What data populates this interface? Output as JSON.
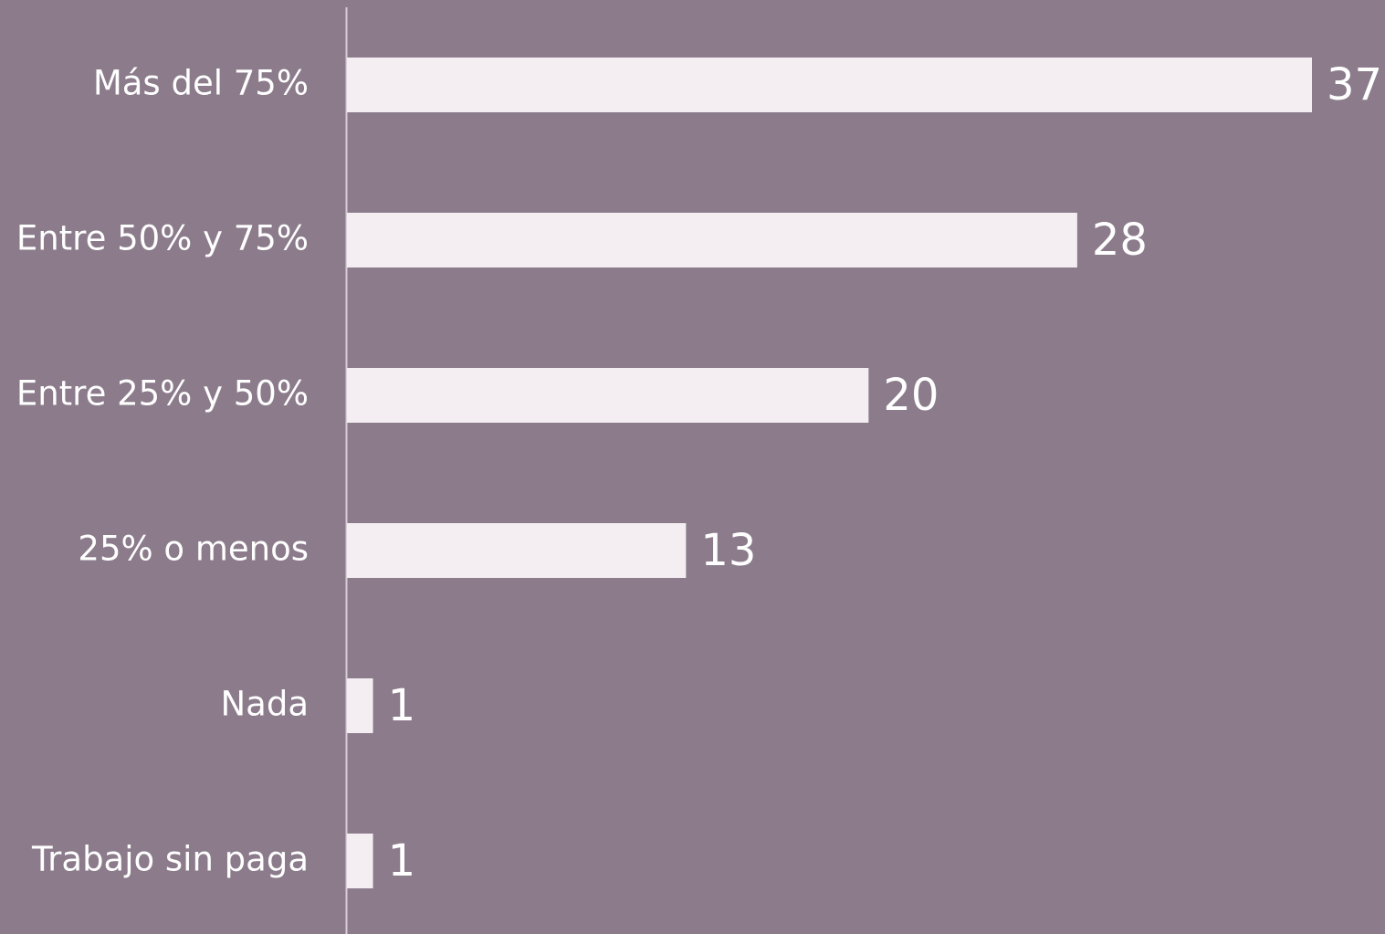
{
  "chart_data": {
    "type": "bar",
    "orientation": "horizontal",
    "categories": [
      "Más del 75%",
      "Entre 50% y 75%",
      "Entre 25% y 50%",
      "25% o menos",
      "Nada",
      "Trabajo sin paga"
    ],
    "values": [
      37,
      28,
      20,
      13,
      1,
      1
    ],
    "color": "#f4eef2",
    "xlim": [
      0,
      37
    ]
  }
}
